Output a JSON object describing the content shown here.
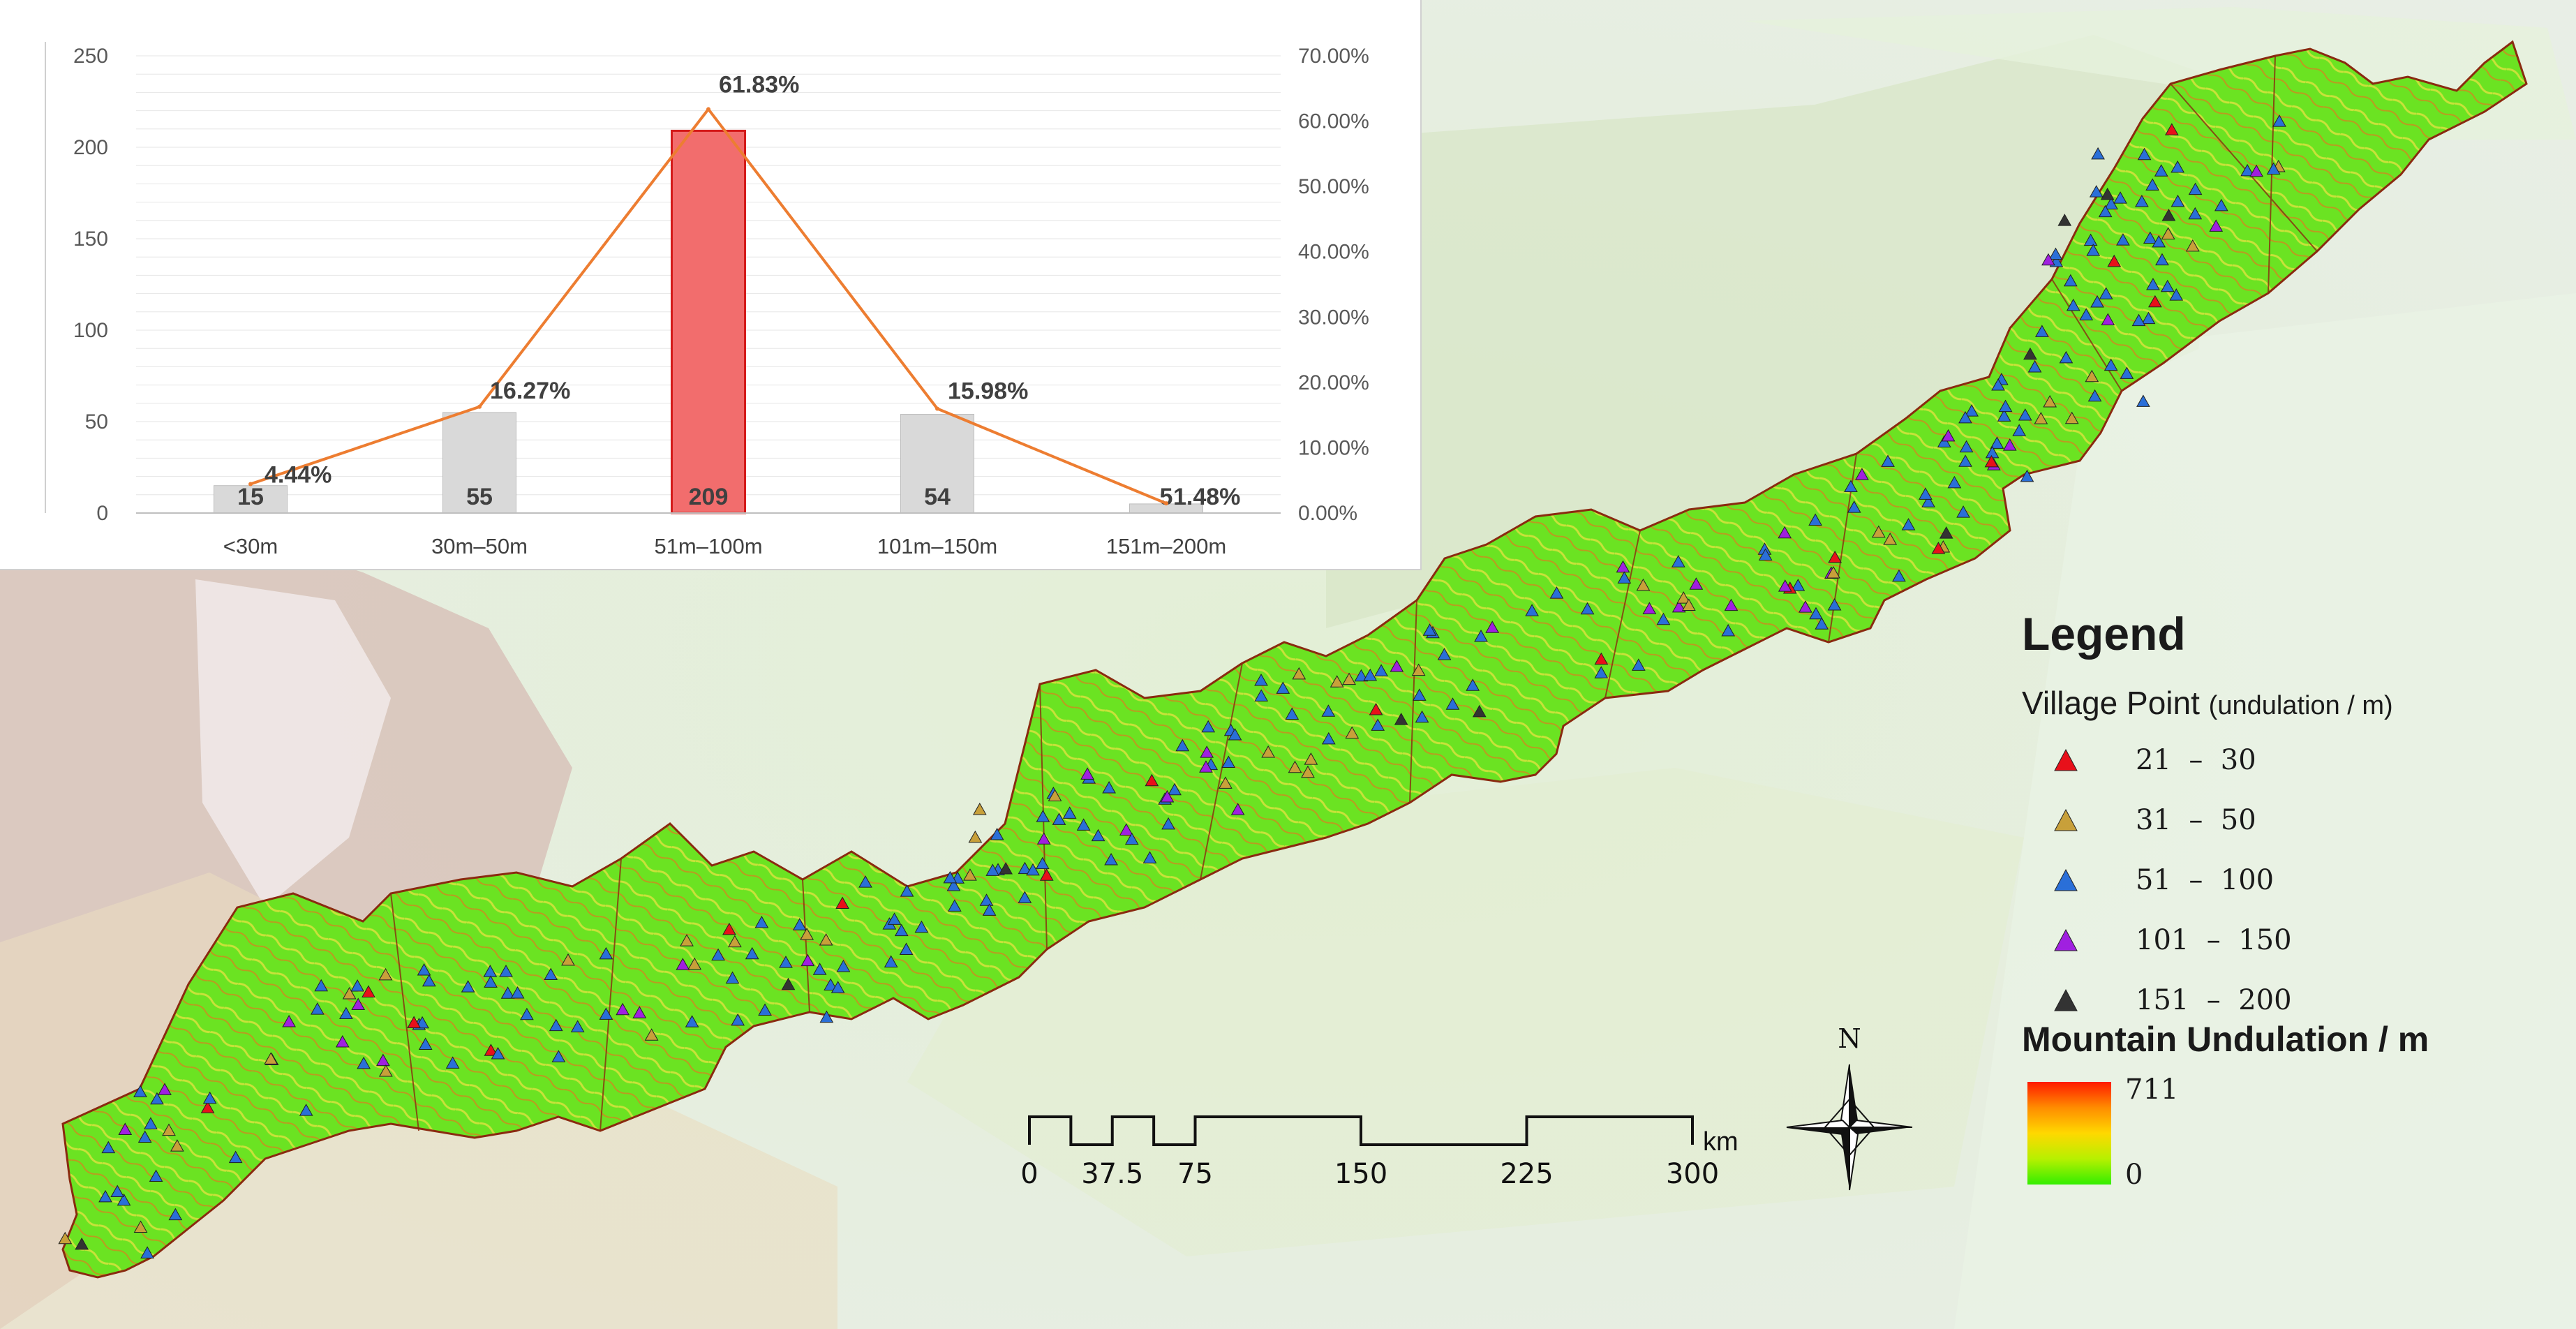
{
  "chart_data": {
    "type": "bar+line",
    "categories": [
      "<30m",
      "30m–50m",
      "51m–100m",
      "101m–150m",
      "151m–200m"
    ],
    "series": [
      {
        "type": "bar",
        "values": [
          15,
          55,
          209,
          54,
          5
        ],
        "value_labels": [
          "15",
          "55",
          "209",
          "54",
          "5"
        ]
      },
      {
        "type": "line",
        "axis": "right",
        "values": [
          4.44,
          16.27,
          61.83,
          15.98,
          1.48
        ],
        "value_labels": [
          "4.44%",
          "16.27%",
          "61.83%",
          "15.98%",
          "1.48%"
        ]
      }
    ],
    "left_axis": {
      "ylim": [
        0,
        250
      ],
      "ticks": [
        "0",
        "50",
        "100",
        "150",
        "200",
        "250"
      ]
    },
    "right_axis": {
      "ylim": [
        0,
        70
      ],
      "ticks": [
        "0.00%",
        "10.00%",
        "20.00%",
        "30.00%",
        "40.00%",
        "50.00%",
        "60.00%",
        "70.00%"
      ]
    },
    "grid": true,
    "highlight_index": 2,
    "colors": {
      "bar": "#d9d9d9",
      "highlight_bar": "#f26d6d",
      "highlight_edge": "#d41a1a",
      "line": "#ed7d31"
    }
  },
  "legend": {
    "title": "Legend",
    "village_title": "Village Point",
    "village_unit": "(undulation / m)",
    "items": [
      {
        "label": "21  –  30",
        "color": "#e8101a"
      },
      {
        "label": "31  –  50",
        "color": "#c8a03a"
      },
      {
        "label": "51  –  100",
        "color": "#2a6fd8"
      },
      {
        "label": "101  –  150",
        "color": "#a020e0"
      },
      {
        "label": "151  –  200",
        "color": "#333333"
      }
    ],
    "undulation_title": "Mountain Undulation / m",
    "ramp_high": "711",
    "ramp_low": "0"
  },
  "scale_bar": {
    "unit": "km",
    "labels": [
      "0",
      "37.5",
      "75",
      "150",
      "225",
      "300"
    ],
    "values": [
      0,
      37.5,
      75,
      150,
      225,
      300
    ]
  },
  "north_arrow": {
    "label": "N"
  },
  "colors": {
    "terrain_background": "#dfe8d8",
    "region_fill": "#66e020",
    "region_border": "#8a2a10"
  }
}
